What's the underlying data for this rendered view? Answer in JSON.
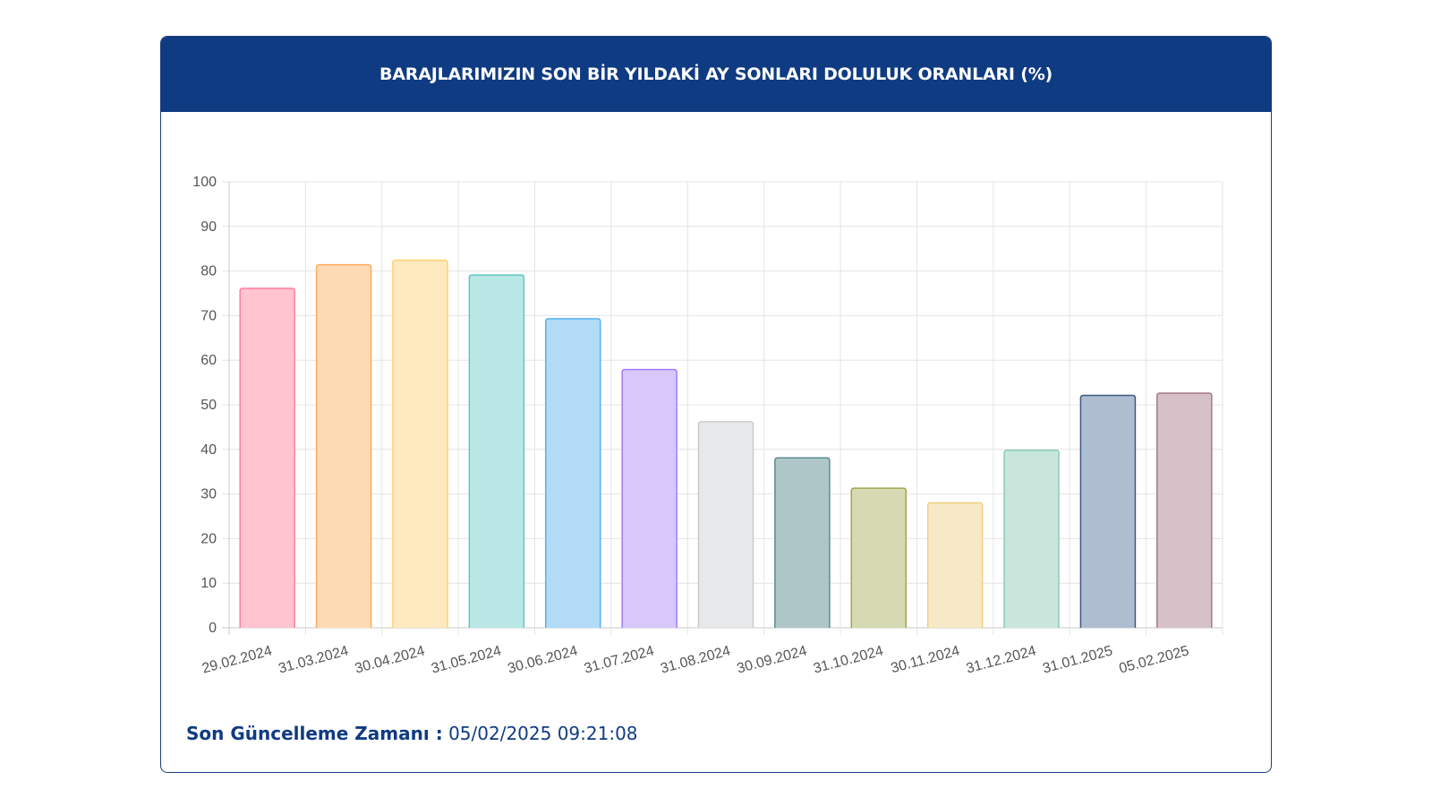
{
  "header": {
    "title": "BARAJLARIMIZIN SON BİR YILDAKİ AY SONLARI DOLULUK ORANLARI (%)"
  },
  "footer": {
    "label": "Son Güncelleme Zamanı :",
    "value": "05/02/2025 09:21:08"
  },
  "chart_data": {
    "type": "bar",
    "title": "BARAJLARIMIZIN SON BİR YILDAKİ AY SONLARI DOLULUK ORANLARI (%)",
    "categories": [
      "29.02.2024",
      "31.03.2024",
      "30.04.2024",
      "31.05.2024",
      "30.06.2024",
      "31.07.2024",
      "31.08.2024",
      "30.09.2024",
      "31.10.2024",
      "30.11.2024",
      "31.12.2024",
      "31.01.2025",
      "05.02.2025"
    ],
    "values": [
      76.1,
      81.4,
      82.4,
      79.1,
      69.3,
      57.9,
      46.2,
      38.1,
      31.3,
      28.0,
      39.8,
      52.1,
      52.6
    ],
    "ylim": [
      0,
      100
    ],
    "yticks": [
      "0",
      "10",
      "20",
      "30",
      "40",
      "50",
      "60",
      "70",
      "80",
      "90",
      "100"
    ],
    "grid": true,
    "legend": "none",
    "bar_fill_colors": [
      "#ffc4d0",
      "#ffdbb5",
      "#ffeac0",
      "#b9e8e6",
      "#b2dbf8",
      "#d7c7fb",
      "#e7e8ea",
      "#afc6c9",
      "#d6dab2",
      "#f7e9c6",
      "#c9e6dd",
      "#aebdcf",
      "#d7c1c8"
    ],
    "bar_border_colors": [
      "#ff7f9b",
      "#ffab5e",
      "#ffd06a",
      "#62c6c2",
      "#58b0f0",
      "#a47dfc",
      "#c9cbcf",
      "#5a8c92",
      "#a0a750",
      "#efcf80",
      "#8bcdb5",
      "#3d5a80",
      "#a6788a"
    ]
  }
}
